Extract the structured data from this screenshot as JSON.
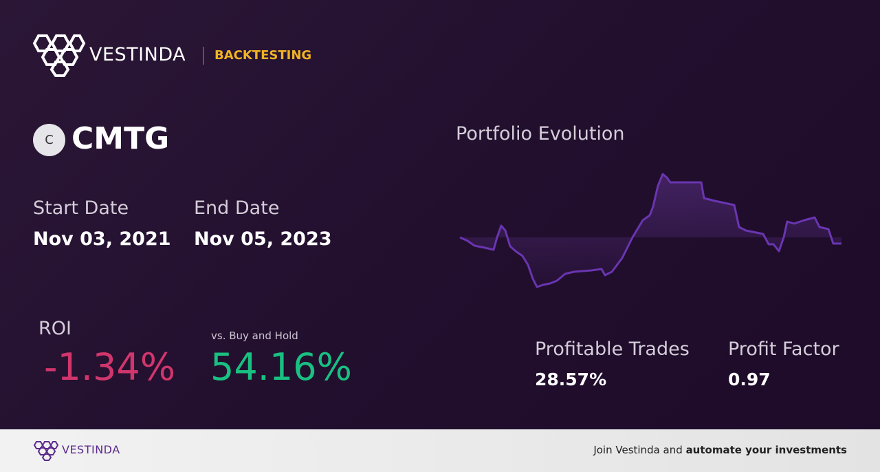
{
  "header": {
    "brand": "VESTINDA",
    "section": "BACKTESTING"
  },
  "ticker": {
    "icon": "C",
    "symbol": "CMTG"
  },
  "dates": {
    "start_label": "Start Date",
    "start": "Nov 03, 2021",
    "end_label": "End Date",
    "end": "Nov 05, 2023"
  },
  "roi": {
    "label": "ROI",
    "value": "-1.34%",
    "compare_label": "vs. Buy and Hold",
    "compare_value": "54.16%"
  },
  "chart": {
    "title": "Portfolio Evolution"
  },
  "stats": [
    {
      "label": "Profitable Trades",
      "value": "28.57%"
    },
    {
      "label": "Profit Factor",
      "value": "0.97"
    }
  ],
  "footer": {
    "brand": "VESTINDA",
    "cta_prefix": "Join Vestinda and",
    "cta_bold": "automate your investments"
  }
}
